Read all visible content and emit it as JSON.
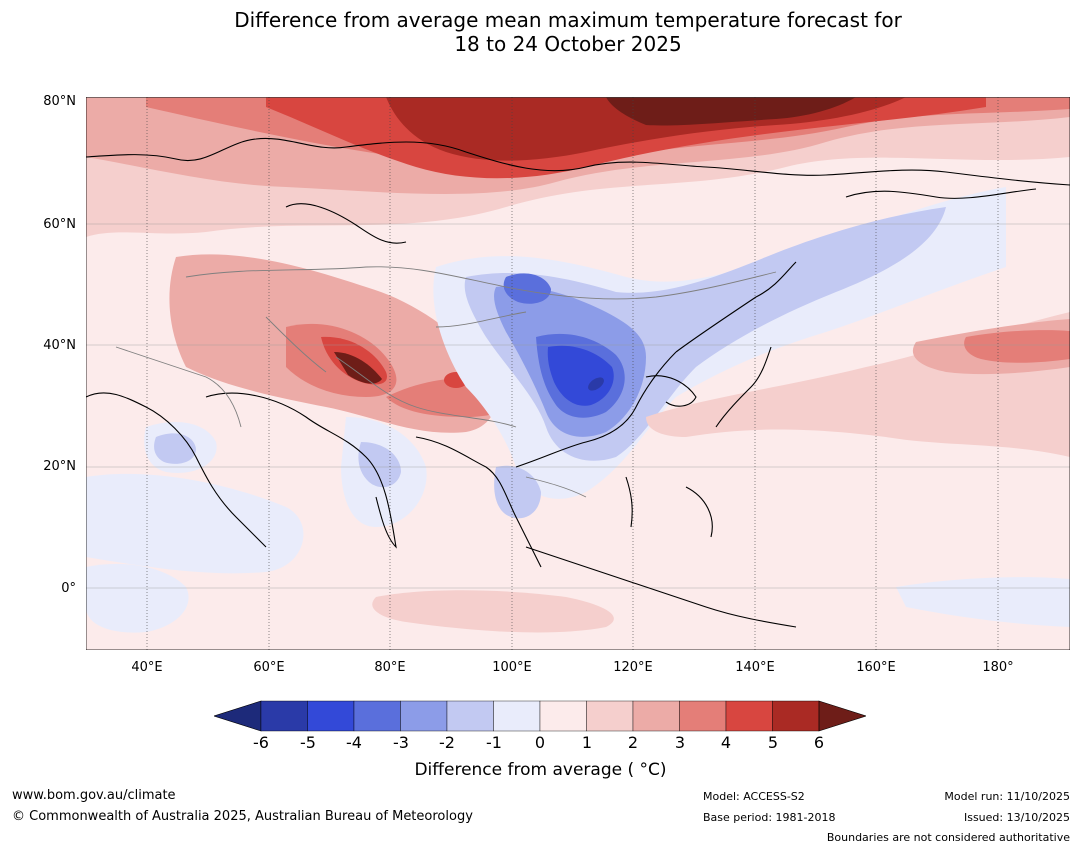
{
  "title": {
    "line1": "Difference from average mean maximum temperature forecast for",
    "line2": "18 to 24 October 2025"
  },
  "map": {
    "lat_labels": [
      "80°N",
      "60°N",
      "40°N",
      "20°N",
      "0°"
    ],
    "lon_labels": [
      "40°E",
      "60°E",
      "80°E",
      "100°E",
      "120°E",
      "140°E",
      "160°E",
      "180°"
    ],
    "colors": {
      "neg6": "#1d2a7a",
      "neg5": "#2a3aa8",
      "neg4": "#3349d8",
      "neg3": "#5a6fdc",
      "neg2": "#8c9ce8",
      "neg1": "#c2c9f2",
      "zero_neg": "#e9ecfb",
      "zero_pos": "#fcebeb",
      "pos1": "#f5cfcd",
      "pos2": "#ecaba7",
      "pos3": "#e47e78",
      "pos4": "#d84640",
      "pos5": "#aa2a24",
      "pos6": "#6e1d18",
      "coast": "#000000",
      "border": "#7f7f7f",
      "grid": "#999999"
    }
  },
  "colorbar": {
    "ticks": [
      "-6",
      "-5",
      "-4",
      "-3",
      "-2",
      "-1",
      "0",
      "1",
      "2",
      "3",
      "4",
      "5",
      "6"
    ],
    "label": "Difference from average ( °C)"
  },
  "footer": {
    "website": "www.bom.gov.au/climate",
    "copyright": "© Commonwealth of Australia 2025, Australian Bureau of Meteorology",
    "model": "Model: ACCESS-S2",
    "base_period": "Base period: 1981-2018",
    "model_run": "Model run: 11/10/2025",
    "issued": "Issued: 13/10/2025",
    "disclaimer": "Boundaries are not considered authoritative"
  }
}
